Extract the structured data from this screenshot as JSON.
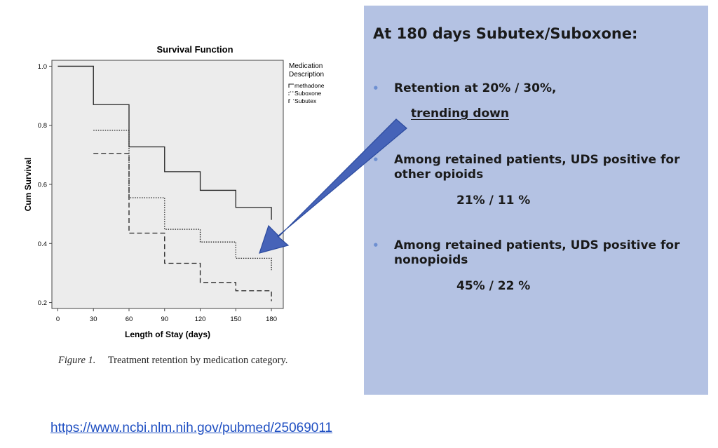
{
  "chart_data": {
    "type": "line",
    "title": "Survival Function",
    "xlabel": "Length of Stay (days)",
    "ylabel": "Cum Survival",
    "x_ticks": [
      0,
      30,
      60,
      90,
      120,
      150,
      180
    ],
    "y_ticks": [
      "1.0",
      "0.8",
      "0.6",
      "0.4",
      "0.2"
    ],
    "y_tick_values": [
      1.0,
      0.8,
      0.6,
      0.4,
      0.2
    ],
    "xlim": [
      -5,
      190
    ],
    "ylim": [
      0.18,
      1.02
    ],
    "step": true,
    "legend_title": "Medication Description",
    "legend_position": "top-right",
    "series": [
      {
        "name": "methadone",
        "x": [
          0,
          30,
          60,
          90,
          120,
          150,
          180
        ],
        "y": [
          1.0,
          0.87,
          0.727,
          0.643,
          0.58,
          0.522,
          0.522
        ],
        "end_drop": 0.48,
        "dash": "solid"
      },
      {
        "name": "Suboxone",
        "x": [
          30,
          60,
          90,
          120,
          150,
          180
        ],
        "y": [
          0.783,
          0.555,
          0.448,
          0.405,
          0.35,
          0.35
        ],
        "end_drop": 0.31,
        "dash": "dotted"
      },
      {
        "name": "Subutex",
        "x": [
          30,
          60,
          90,
          120,
          150,
          180
        ],
        "y": [
          0.705,
          0.435,
          0.333,
          0.268,
          0.24,
          0.24
        ],
        "end_drop": 0.205,
        "dash": "dashed"
      }
    ]
  },
  "caption": {
    "label": "Figure 1.",
    "text": "Treatment retention by medication category."
  },
  "panel": {
    "heading": "At 180 days Subutex/Suboxone:",
    "bullet_symbol": "•",
    "bullets": [
      {
        "text": "Retention at 20% / 30%,",
        "sub": "trending  down"
      },
      {
        "text": "Among retained patients, UDS positive for other opioids",
        "sub": "21% / 11 %"
      },
      {
        "text": "Among retained patients, UDS positive for nonopioids",
        "sub": "45% / 22 %"
      }
    ],
    "background": "#b4c2e3",
    "arrow_color": "#4663b8"
  },
  "link": {
    "text": "https://www.ncbi.nlm.nih.gov/pubmed/25069011"
  }
}
